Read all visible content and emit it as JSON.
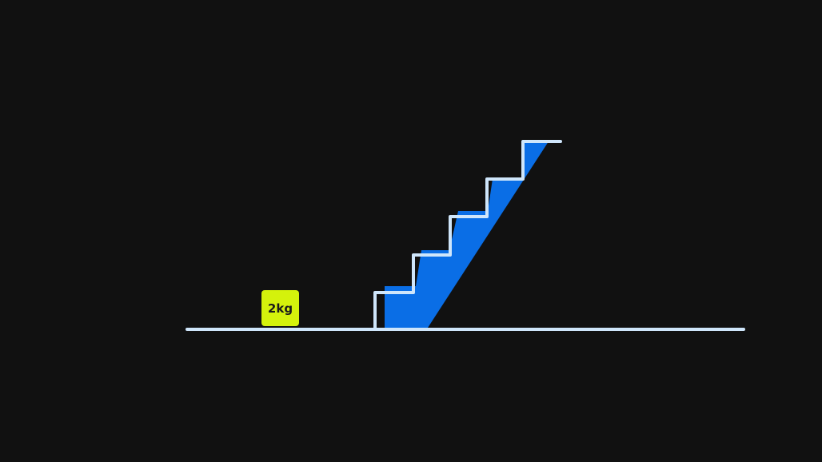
{
  "weight": {
    "label": "2kg",
    "color": "#d4f20c"
  },
  "staircase": {
    "steps": 5,
    "fill_color": "#0a6ee6",
    "outline_color": "#cfe6fb"
  },
  "ground": {
    "color": "#cfe6fb"
  },
  "background_color": "#111111"
}
